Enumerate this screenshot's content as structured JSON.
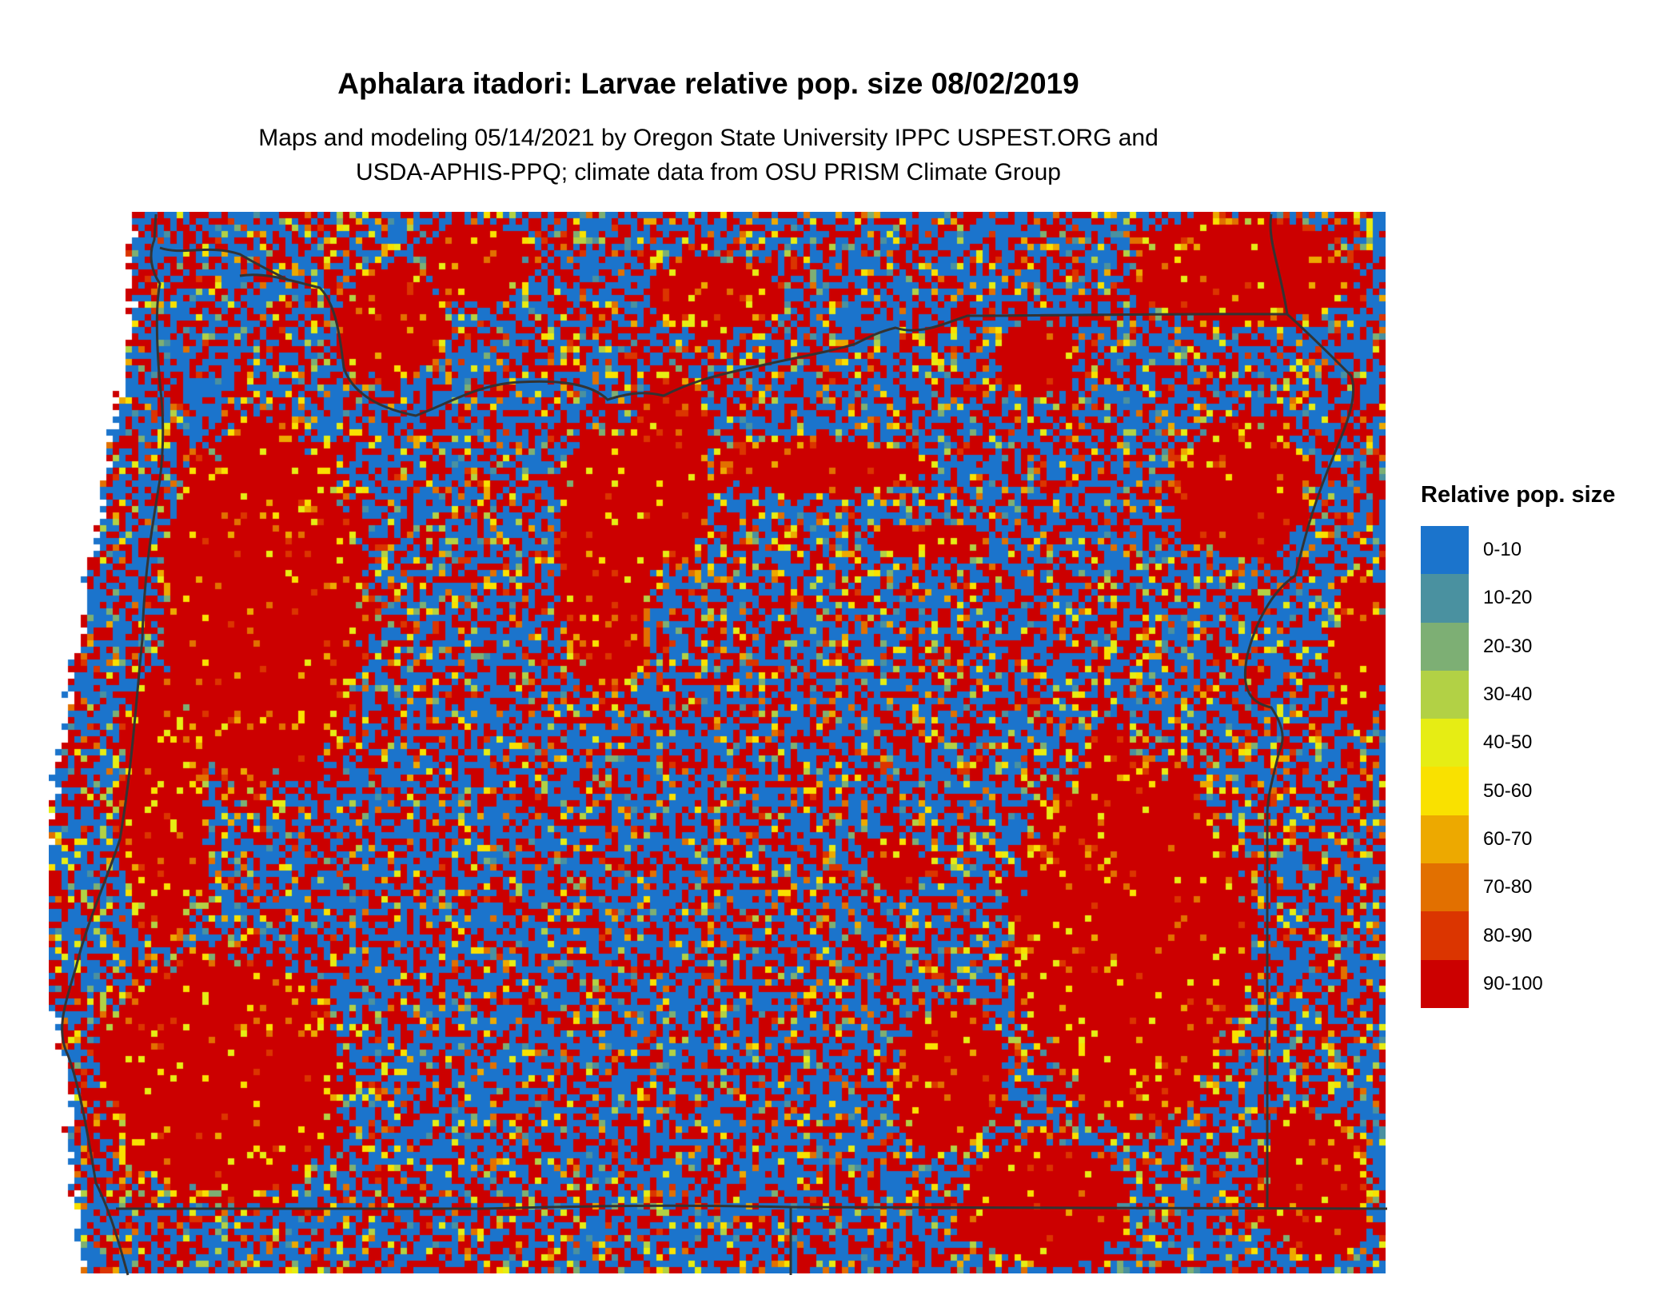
{
  "title": "Aphalara itadori: Larvae relative pop. size 08/02/2019",
  "subtitle_lines": [
    "Maps and modeling 05/14/2021 by Oregon State University IPPC USPEST.ORG and",
    "USDA-APHIS-PPQ; climate data from OSU PRISM Climate Group"
  ],
  "legend": {
    "title": "Relative pop. size",
    "items": [
      {
        "label": "0-10",
        "color": "#1b74cc"
      },
      {
        "label": "10-20",
        "color": "#4a91a0"
      },
      {
        "label": "20-30",
        "color": "#7daf74"
      },
      {
        "label": "30-40",
        "color": "#b2d145"
      },
      {
        "label": "40-50",
        "color": "#e6ed14"
      },
      {
        "label": "50-60",
        "color": "#f9e100"
      },
      {
        "label": "60-70",
        "color": "#eda900"
      },
      {
        "label": "70-80",
        "color": "#e27000"
      },
      {
        "label": "80-90",
        "color": "#db3500"
      },
      {
        "label": "90-100",
        "color": "#cc0000"
      }
    ]
  },
  "boundary_color": "#333333"
}
